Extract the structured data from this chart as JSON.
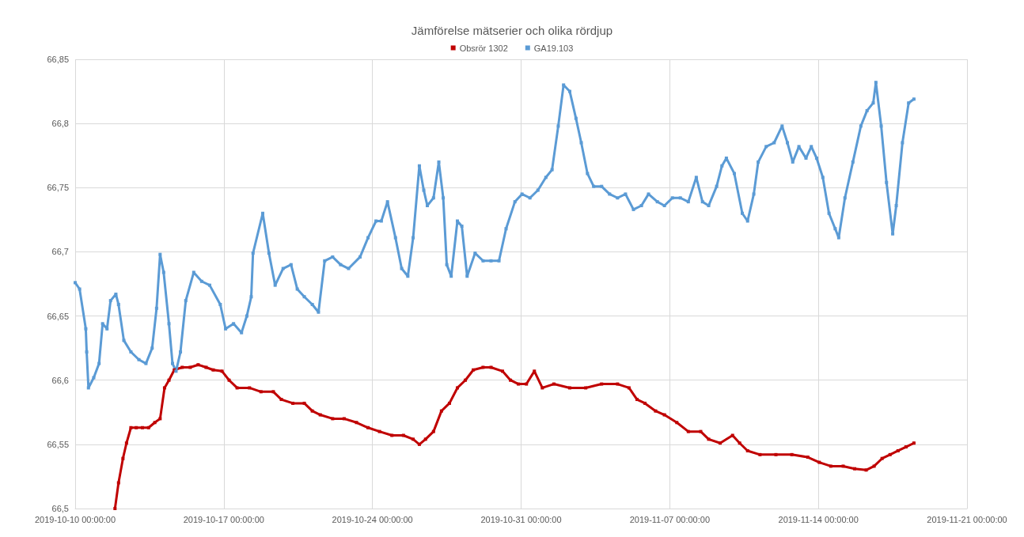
{
  "chart_data": {
    "type": "line",
    "title": "Jämförelse mätserier och olika rördjup",
    "legend": "top",
    "grid": true,
    "marker": "square",
    "line_style": "solid",
    "xlim": [
      "2019-10-10",
      "2019-11-21"
    ],
    "xticks": [
      {
        "value": "2019-10-10",
        "label": "2019-10-10 00:00:00"
      },
      {
        "value": "2019-10-17",
        "label": "2019-10-17 00:00:00"
      },
      {
        "value": "2019-10-24",
        "label": "2019-10-24 00:00:00"
      },
      {
        "value": "2019-10-31",
        "label": "2019-10-31 00:00:00"
      },
      {
        "value": "2019-11-07",
        "label": "2019-11-07 00:00:00"
      },
      {
        "value": "2019-11-14",
        "label": "2019-11-14 00:00:00"
      },
      {
        "value": "2019-11-21",
        "label": "2019-11-21 00:00:00"
      }
    ],
    "ylim": [
      66.5,
      66.85
    ],
    "yticks": [
      {
        "value": 66.5,
        "label": "66,5"
      },
      {
        "value": 66.55,
        "label": "66,55"
      },
      {
        "value": 66.6,
        "label": "66,6"
      },
      {
        "value": 66.65,
        "label": "66,65"
      },
      {
        "value": 66.7,
        "label": "66,7"
      },
      {
        "value": 66.75,
        "label": "66,75"
      },
      {
        "value": 66.8,
        "label": "66,8"
      },
      {
        "value": 66.85,
        "label": "66,85"
      }
    ],
    "series": [
      {
        "name": "Obsrör 1302",
        "color": "#c00000",
        "x": [
          "2019-10-11T21:00",
          "2019-10-12T01:00",
          "2019-10-12T06:00",
          "2019-10-12T10:00",
          "2019-10-12T15:00",
          "2019-10-12T21:00",
          "2019-10-13T04:00",
          "2019-10-13T11:00",
          "2019-10-13T18:00",
          "2019-10-14T00:00",
          "2019-10-14T05:00",
          "2019-10-14T10:00",
          "2019-10-14T16:00",
          "2019-10-15T01:00",
          "2019-10-15T10:00",
          "2019-10-15T19:00",
          "2019-10-16T04:00",
          "2019-10-16T12:00",
          "2019-10-16T22:00",
          "2019-10-17T06:00",
          "2019-10-17T15:00",
          "2019-10-18T05:00",
          "2019-10-18T18:00",
          "2019-10-19T08:00",
          "2019-10-19T17:00",
          "2019-10-20T06:00",
          "2019-10-20T19:00",
          "2019-10-21T04:00",
          "2019-10-21T13:00",
          "2019-10-22T03:00",
          "2019-10-22T16:00",
          "2019-10-23T06:00",
          "2019-10-23T19:00",
          "2019-10-24T08:00",
          "2019-10-24T22:00",
          "2019-10-25T11:00",
          "2019-10-25T22:00",
          "2019-10-26T05:00",
          "2019-10-26T12:00",
          "2019-10-26T21:00",
          "2019-10-27T06:00",
          "2019-10-27T15:00",
          "2019-10-28T00:00",
          "2019-10-28T09:00",
          "2019-10-28T18:00",
          "2019-10-29T05:00",
          "2019-10-29T14:00",
          "2019-10-30T03:00",
          "2019-10-30T12:00",
          "2019-10-30T21:00",
          "2019-10-31T06:00",
          "2019-10-31T15:00",
          "2019-11-01T00:00",
          "2019-11-01T13:00",
          "2019-11-02T07:00",
          "2019-11-03T01:00",
          "2019-11-03T19:00",
          "2019-11-04T13:00",
          "2019-11-05T02:00",
          "2019-11-05T11:00",
          "2019-11-05T20:00",
          "2019-11-06T08:00",
          "2019-11-06T18:00",
          "2019-11-07T08:00",
          "2019-11-07T21:00",
          "2019-11-08T11:00",
          "2019-11-08T20:00",
          "2019-11-09T09:00",
          "2019-11-09T23:00",
          "2019-11-10T07:00",
          "2019-11-10T16:00",
          "2019-11-11T06:00",
          "2019-11-12T00:00",
          "2019-11-12T18:00",
          "2019-11-13T12:00",
          "2019-11-14T01:00",
          "2019-11-14T14:00",
          "2019-11-15T04:00",
          "2019-11-15T17:00",
          "2019-11-16T06:00",
          "2019-11-16T15:00",
          "2019-11-17T00:00",
          "2019-11-17T09:00",
          "2019-11-17T18:00",
          "2019-11-18T03:00",
          "2019-11-18T12:00"
        ],
        "values": [
          66.5,
          66.52,
          66.539,
          66.551,
          66.563,
          66.563,
          66.563,
          66.563,
          66.567,
          66.57,
          66.594,
          66.6,
          66.608,
          66.61,
          66.61,
          66.612,
          66.61,
          66.608,
          66.607,
          66.6,
          66.594,
          66.594,
          66.591,
          66.591,
          66.585,
          66.582,
          66.582,
          66.576,
          66.573,
          66.57,
          66.57,
          66.567,
          66.563,
          66.56,
          66.557,
          66.557,
          66.554,
          66.55,
          66.554,
          66.56,
          66.576,
          66.582,
          66.594,
          66.6,
          66.608,
          66.61,
          66.61,
          66.607,
          66.6,
          66.597,
          66.597,
          66.607,
          66.594,
          66.597,
          66.594,
          66.594,
          66.597,
          66.597,
          66.594,
          66.585,
          66.582,
          66.576,
          66.573,
          66.567,
          66.56,
          66.56,
          66.554,
          66.551,
          66.557,
          66.551,
          66.545,
          66.542,
          66.542,
          66.542,
          66.54,
          66.536,
          66.533,
          66.533,
          66.531,
          66.53,
          66.533,
          66.539,
          66.542,
          66.545,
          66.548,
          66.551
        ]
      },
      {
        "name": "GA19.103",
        "color": "#5b9bd5",
        "x": [
          "2019-10-10T00:00",
          "2019-10-10T05:00",
          "2019-10-10T12:00",
          "2019-10-10T13:00",
          "2019-10-10T15:00",
          "2019-10-10T21:00",
          "2019-10-11T03:00",
          "2019-10-11T07:00",
          "2019-10-11T12:00",
          "2019-10-11T16:00",
          "2019-10-11T22:00",
          "2019-10-12T01:00",
          "2019-10-12T07:00",
          "2019-10-12T15:00",
          "2019-10-13T00:00",
          "2019-10-13T08:00",
          "2019-10-13T15:00",
          "2019-10-13T20:00",
          "2019-10-14T00:00",
          "2019-10-14T04:00",
          "2019-10-14T10:00",
          "2019-10-14T14:00",
          "2019-10-14T18:00",
          "2019-10-14T23:00",
          "2019-10-15T05:00",
          "2019-10-15T14:00",
          "2019-10-15T23:00",
          "2019-10-16T08:00",
          "2019-10-16T20:00",
          "2019-10-17T02:00",
          "2019-10-17T11:00",
          "2019-10-17T20:00",
          "2019-10-18T02:00",
          "2019-10-18T07:00",
          "2019-10-18T09:00",
          "2019-10-18T20:00",
          "2019-10-19T03:00",
          "2019-10-19T10:00",
          "2019-10-19T19:00",
          "2019-10-20T04:00",
          "2019-10-20T11:00",
          "2019-10-20T19:00",
          "2019-10-21T04:00",
          "2019-10-21T11:00",
          "2019-10-21T18:00",
          "2019-10-22T03:00",
          "2019-10-22T12:00",
          "2019-10-22T21:00",
          "2019-10-23T10:00",
          "2019-10-23T19:00",
          "2019-10-24T04:00",
          "2019-10-24T10:00",
          "2019-10-24T17:00",
          "2019-10-25T02:00",
          "2019-10-25T09:00",
          "2019-10-25T16:00",
          "2019-10-25T22:00",
          "2019-10-26T05:00",
          "2019-10-26T10:00",
          "2019-10-26T14:00",
          "2019-10-26T21:00",
          "2019-10-27T03:00",
          "2019-10-27T08:00",
          "2019-10-27T12:00",
          "2019-10-27T17:00",
          "2019-10-28T00:00",
          "2019-10-28T05:00",
          "2019-10-28T11:00",
          "2019-10-28T20:00",
          "2019-10-29T05:00",
          "2019-10-29T14:00",
          "2019-10-29T23:00",
          "2019-10-30T07:00",
          "2019-10-30T17:00",
          "2019-10-31T01:00",
          "2019-10-31T10:00",
          "2019-10-31T19:00",
          "2019-11-01T04:00",
          "2019-11-01T11:00",
          "2019-11-01T18:00",
          "2019-11-02T00:00",
          "2019-11-02T07:00",
          "2019-11-02T14:00",
          "2019-11-02T20:00",
          "2019-11-03T03:00",
          "2019-11-03T10:00",
          "2019-11-03T19:00",
          "2019-11-04T04:00",
          "2019-11-04T13:00",
          "2019-11-04T22:00",
          "2019-11-05T07:00",
          "2019-11-05T16:00",
          "2019-11-06T00:00",
          "2019-11-06T10:00",
          "2019-11-06T18:00",
          "2019-11-07T03:00",
          "2019-11-07T12:00",
          "2019-11-07T21:00",
          "2019-11-08T06:00",
          "2019-11-08T13:00",
          "2019-11-08T20:00",
          "2019-11-09T05:00",
          "2019-11-09T11:00",
          "2019-11-09T16:00",
          "2019-11-10T01:00",
          "2019-11-10T10:00",
          "2019-11-10T16:00",
          "2019-11-10T23:00",
          "2019-11-11T04:00",
          "2019-11-11T13:00",
          "2019-11-11T22:00",
          "2019-11-12T07:00",
          "2019-11-12T13:00",
          "2019-11-12T19:00",
          "2019-11-13T02:00",
          "2019-11-13T10:00",
          "2019-11-13T16:00",
          "2019-11-13T22:00",
          "2019-11-14T05:00",
          "2019-11-14T12:00",
          "2019-11-14T19:00",
          "2019-11-14T23:00",
          "2019-11-15T06:00",
          "2019-11-15T15:00",
          "2019-11-16T00:00",
          "2019-11-16T07:00",
          "2019-11-16T14:00",
          "2019-11-16T17:00",
          "2019-11-16T23:00",
          "2019-11-17T05:00",
          "2019-11-17T12:00",
          "2019-11-17T16:00",
          "2019-11-17T23:00",
          "2019-11-18T06:00",
          "2019-11-18T12:00"
        ],
        "values": [
          66.676,
          66.671,
          66.64,
          66.622,
          66.594,
          66.602,
          66.613,
          66.644,
          66.64,
          66.662,
          66.667,
          66.659,
          66.631,
          66.622,
          66.616,
          66.613,
          66.625,
          66.656,
          66.698,
          66.684,
          66.644,
          66.613,
          66.607,
          66.622,
          66.662,
          66.684,
          66.677,
          66.674,
          66.659,
          66.64,
          66.644,
          66.637,
          66.65,
          66.665,
          66.699,
          66.73,
          66.699,
          66.674,
          66.687,
          66.69,
          66.671,
          66.665,
          66.659,
          66.653,
          66.693,
          66.696,
          66.69,
          66.687,
          66.696,
          66.711,
          66.724,
          66.724,
          66.739,
          66.711,
          66.687,
          66.681,
          66.711,
          66.767,
          66.748,
          66.736,
          66.742,
          66.77,
          66.742,
          66.69,
          66.681,
          66.724,
          66.72,
          66.681,
          66.699,
          66.693,
          66.693,
          66.693,
          66.718,
          66.739,
          66.745,
          66.742,
          66.748,
          66.758,
          66.764,
          66.798,
          66.83,
          66.825,
          66.804,
          66.785,
          66.761,
          66.751,
          66.751,
          66.745,
          66.742,
          66.745,
          66.733,
          66.736,
          66.745,
          66.739,
          66.736,
          66.742,
          66.742,
          66.739,
          66.758,
          66.739,
          66.736,
          66.751,
          66.767,
          66.773,
          66.761,
          66.73,
          66.724,
          66.745,
          66.77,
          66.782,
          66.785,
          66.798,
          66.785,
          66.77,
          66.782,
          66.773,
          66.782,
          66.773,
          66.758,
          66.73,
          66.718,
          66.711,
          66.742,
          66.77,
          66.798,
          66.81,
          66.816,
          66.832,
          66.798,
          66.754,
          66.714,
          66.736,
          66.785,
          66.816,
          66.819
        ]
      }
    ]
  }
}
